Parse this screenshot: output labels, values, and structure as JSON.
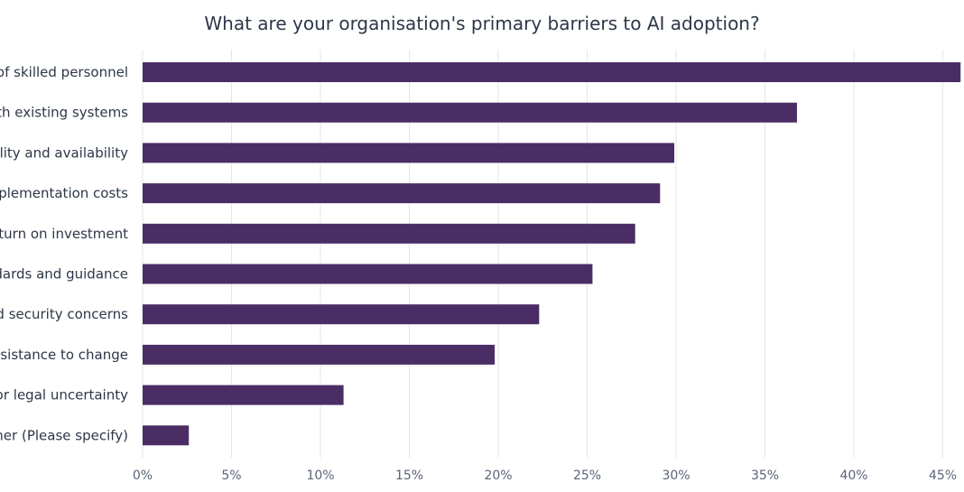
{
  "chart_data": {
    "type": "bar",
    "orientation": "horizontal",
    "title": "What are your organisation's primary barriers to AI adoption?",
    "categories": [
      "of skilled personnel",
      "ith existing systems",
      "ality and availability",
      "plementation costs",
      "eturn on investment",
      "dards and guidance",
      "d security concerns",
      "esistance to change",
      "or legal uncertainty",
      "her (Please specify)"
    ],
    "values": [
      46.0,
      36.8,
      29.9,
      29.1,
      27.7,
      25.3,
      22.3,
      19.8,
      11.3,
      2.6
    ],
    "xticks": [
      0,
      5,
      10,
      15,
      20,
      25,
      30,
      35,
      40,
      45
    ],
    "xtick_labels": [
      "0%",
      "5%",
      "10%",
      "15%",
      "20%",
      "25%",
      "30%",
      "35%",
      "40%",
      "45%"
    ],
    "xlim": [
      0,
      46
    ],
    "xlabel": "",
    "ylabel": "",
    "grid": true,
    "bar_color": "#4b2d65"
  }
}
